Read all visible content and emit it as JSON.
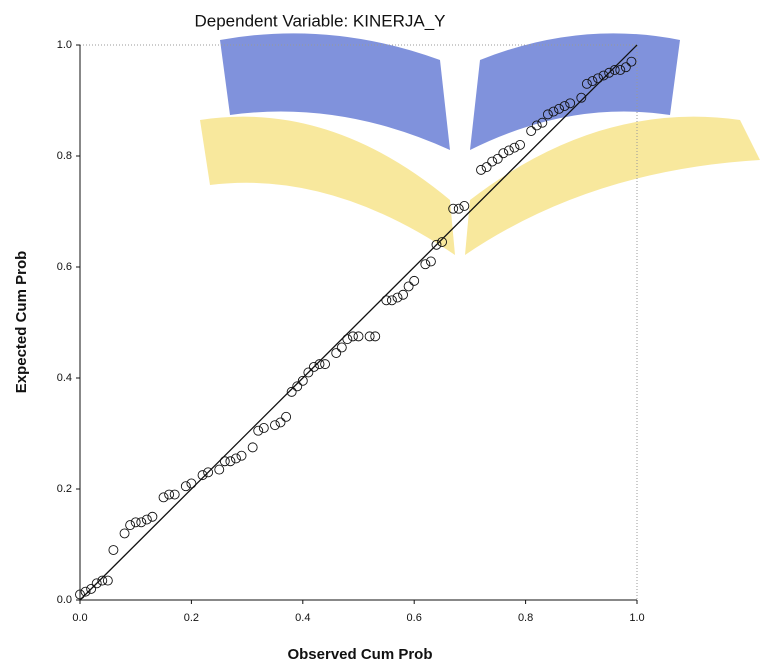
{
  "chart_data": {
    "type": "scatter",
    "title": "Dependent Variable: KINERJA_Y",
    "xlabel": "Observed Cum Prob",
    "ylabel": "Expected Cum Prob",
    "xlim": [
      0,
      1
    ],
    "ylim": [
      0,
      1
    ],
    "xticks": [
      {
        "value": 0,
        "label": "0.0"
      },
      0.2,
      0.4,
      0.6,
      0.8,
      {
        "value": 1,
        "label": "1.0"
      }
    ],
    "yticks": [
      {
        "value": 0,
        "label": "0.0"
      },
      0.2,
      0.4,
      0.6,
      0.8,
      {
        "value": 1,
        "label": "1.0"
      }
    ],
    "diagonal": true,
    "marker": "open-circle",
    "color": "#111111",
    "x": [
      0.0,
      0.01,
      0.02,
      0.03,
      0.04,
      0.05,
      0.06,
      0.08,
      0.09,
      0.1,
      0.11,
      0.12,
      0.13,
      0.15,
      0.16,
      0.17,
      0.19,
      0.2,
      0.22,
      0.23,
      0.25,
      0.26,
      0.27,
      0.28,
      0.29,
      0.31,
      0.32,
      0.33,
      0.35,
      0.36,
      0.37,
      0.38,
      0.39,
      0.4,
      0.41,
      0.42,
      0.43,
      0.44,
      0.46,
      0.47,
      0.48,
      0.49,
      0.5,
      0.52,
      0.53,
      0.55,
      0.56,
      0.57,
      0.58,
      0.59,
      0.6,
      0.62,
      0.63,
      0.64,
      0.65,
      0.67,
      0.68,
      0.69,
      0.72,
      0.73,
      0.74,
      0.75,
      0.76,
      0.77,
      0.78,
      0.79,
      0.81,
      0.82,
      0.83,
      0.84,
      0.85,
      0.86,
      0.87,
      0.88,
      0.9,
      0.91,
      0.92,
      0.93,
      0.94,
      0.95,
      0.96,
      0.97,
      0.98,
      0.99
    ],
    "values": [
      0.01,
      0.015,
      0.02,
      0.03,
      0.035,
      0.035,
      0.09,
      0.12,
      0.135,
      0.14,
      0.14,
      0.145,
      0.15,
      0.185,
      0.19,
      0.19,
      0.205,
      0.21,
      0.225,
      0.23,
      0.235,
      0.25,
      0.25,
      0.255,
      0.26,
      0.275,
      0.305,
      0.31,
      0.315,
      0.32,
      0.33,
      0.375,
      0.385,
      0.395,
      0.41,
      0.42,
      0.425,
      0.425,
      0.445,
      0.455,
      0.47,
      0.475,
      0.475,
      0.475,
      0.475,
      0.54,
      0.54,
      0.545,
      0.55,
      0.565,
      0.575,
      0.605,
      0.61,
      0.64,
      0.645,
      0.705,
      0.705,
      0.71,
      0.775,
      0.78,
      0.79,
      0.795,
      0.805,
      0.81,
      0.815,
      0.82,
      0.845,
      0.855,
      0.86,
      0.875,
      0.88,
      0.885,
      0.89,
      0.895,
      0.905,
      0.93,
      0.935,
      0.94,
      0.945,
      0.95,
      0.955,
      0.955,
      0.96,
      0.97
    ]
  }
}
